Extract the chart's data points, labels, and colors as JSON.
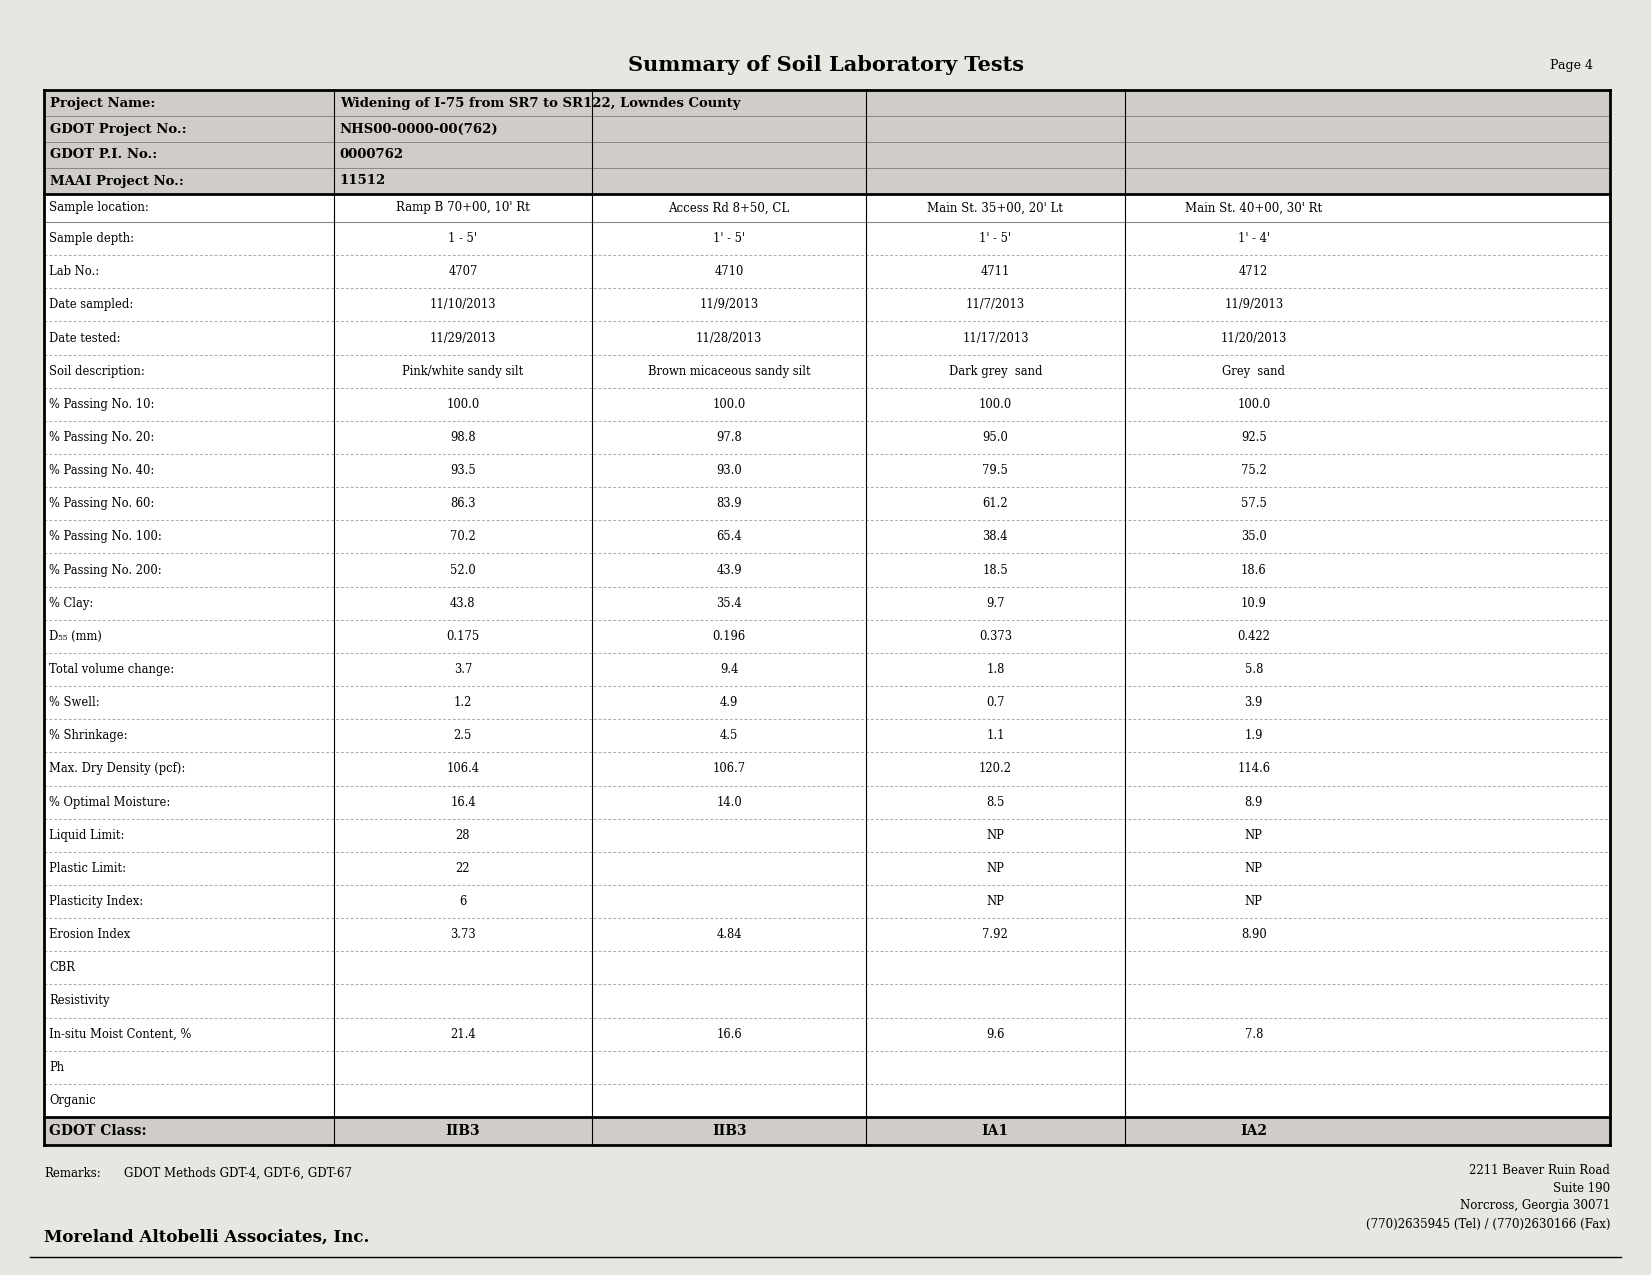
{
  "title": "Summary of Soil Laboratory Tests",
  "page_label": "Page 4",
  "project_info": [
    [
      "Project Name:",
      "Widening of I-75 from SR7 to SR122, Lowndes County"
    ],
    [
      "GDOT Project No.:",
      "NHS00-0000-00(762)"
    ],
    [
      "GDOT P.I. No.:",
      "0000762"
    ],
    [
      "MAAI Project No.:",
      "11512"
    ]
  ],
  "header_row": [
    "Sample location:",
    "Ramp B 70+00, 10' Rt",
    "Access Rd 8+50, CL",
    "Main St. 35+00, 20' Lt",
    "Main St. 40+00, 30' Rt",
    ""
  ],
  "data_rows": [
    [
      "Sample depth:",
      "1 - 5'",
      "1' - 5'",
      "1' - 5'",
      "1' - 4'",
      ""
    ],
    [
      "Lab No.:",
      "4707",
      "4710",
      "4711",
      "4712",
      ""
    ],
    [
      "Date sampled:",
      "11/10/2013",
      "11/9/2013",
      "11/7/2013",
      "11/9/2013",
      ""
    ],
    [
      "Date tested:",
      "11/29/2013",
      "11/28/2013",
      "11/17/2013",
      "11/20/2013",
      ""
    ],
    [
      "Soil description:",
      "Pink/white sandy silt",
      "Brown micaceous sandy silt",
      "Dark grey  sand",
      "Grey  sand",
      ""
    ],
    [
      "% Passing No. 10:",
      "100.0",
      "100.0",
      "100.0",
      "100.0",
      ""
    ],
    [
      "% Passing No. 20:",
      "98.8",
      "97.8",
      "95.0",
      "92.5",
      ""
    ],
    [
      "% Passing No. 40:",
      "93.5",
      "93.0",
      "79.5",
      "75.2",
      ""
    ],
    [
      "% Passing No. 60:",
      "86.3",
      "83.9",
      "61.2",
      "57.5",
      ""
    ],
    [
      "% Passing No. 100:",
      "70.2",
      "65.4",
      "38.4",
      "35.0",
      ""
    ],
    [
      "% Passing No. 200:",
      "52.0",
      "43.9",
      "18.5",
      "18.6",
      ""
    ],
    [
      "% Clay:",
      "43.8",
      "35.4",
      "9.7",
      "10.9",
      ""
    ],
    [
      "D₅₅ (mm)",
      "0.175",
      "0.196",
      "0.373",
      "0.422",
      ""
    ],
    [
      "Total volume change:",
      "3.7",
      "9.4",
      "1.8",
      "5.8",
      ""
    ],
    [
      "% Swell:",
      "1.2",
      "4.9",
      "0.7",
      "3.9",
      ""
    ],
    [
      "% Shrinkage:",
      "2.5",
      "4.5",
      "1.1",
      "1.9",
      ""
    ],
    [
      "Max. Dry Density (pcf):",
      "106.4",
      "106.7",
      "120.2",
      "114.6",
      ""
    ],
    [
      "% Optimal Moisture:",
      "16.4",
      "14.0",
      "8.5",
      "8.9",
      ""
    ],
    [
      "Liquid Limit:",
      "28",
      "",
      "NP",
      "NP",
      ""
    ],
    [
      "Plastic Limit:",
      "22",
      "",
      "NP",
      "NP",
      ""
    ],
    [
      "Plasticity Index:",
      "6",
      "",
      "NP",
      "NP",
      ""
    ],
    [
      "Erosion Index",
      "3.73",
      "4.84",
      "7.92",
      "8.90",
      ""
    ],
    [
      "CBR",
      "",
      "",
      "",
      "",
      ""
    ],
    [
      "Resistivity",
      "",
      "",
      "",
      "",
      ""
    ],
    [
      "In-situ Moist Content, %",
      "21.4",
      "16.6",
      "9.6",
      "7.8",
      ""
    ],
    [
      "Ph",
      "",
      "",
      "",
      "",
      ""
    ],
    [
      "Organic",
      "",
      "",
      "",
      "",
      ""
    ]
  ],
  "footer_row": [
    "GDOT Class:",
    "IIB3",
    "IIB3",
    "IA1",
    "IA2",
    ""
  ],
  "remarks_label": "Remarks:",
  "remarks_value": "GDOT Methods GDT-4, GDT-6, GDT-67",
  "company_name": "Moreland Altobelli Associates, Inc.",
  "address_lines": [
    "2211 Beaver Ruin Road",
    "Suite 190",
    "Norcross, Georgia 30071",
    "(770)2635945 (Tel) / (770)2630166 (Fax)"
  ],
  "col_widths_raw": [
    185,
    165,
    175,
    165,
    165,
    145
  ],
  "page_bg": "#e8e6e0",
  "bg_white": "#ffffff",
  "text_dark": "#000000"
}
